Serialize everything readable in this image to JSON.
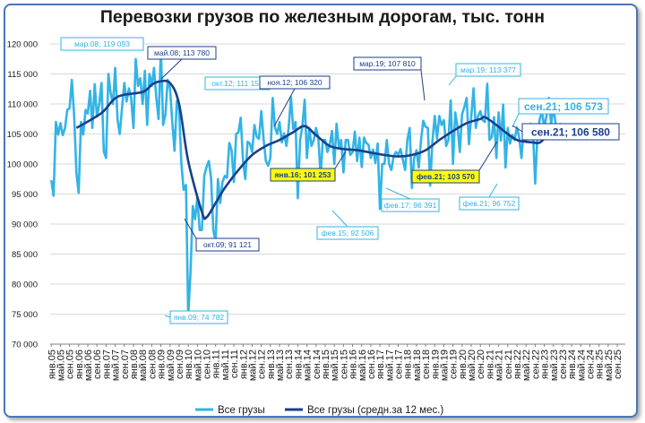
{
  "chart_data": {
    "type": "line",
    "title": "Перевозки грузов по железным дорогам, тыс. тонн",
    "ylim": [
      70000,
      120000
    ],
    "yticks": [
      70000,
      75000,
      80000,
      85000,
      90000,
      95000,
      100000,
      105000,
      110000,
      115000,
      120000
    ],
    "ytick_labels": [
      "70 000",
      "75 000",
      "80 000",
      "85 000",
      "90 000",
      "95 000",
      "100 000",
      "105 000",
      "110 000",
      "115 000",
      "120 000"
    ],
    "xtick_labels": [
      "янв.05",
      "май.05",
      "сен.05",
      "янв.06",
      "май.06",
      "сен.06",
      "янв.07",
      "май.07",
      "сен.07",
      "янв.08",
      "май.08",
      "сен.08",
      "янв.09",
      "май.09",
      "сен.09",
      "янв.10",
      "май.10",
      "сен.10",
      "янв.11",
      "май.11",
      "сен.11",
      "янв.12",
      "май.12",
      "сен.12",
      "янв.13",
      "май.13",
      "сен.13",
      "янв.14",
      "май.14",
      "сен.14",
      "янв.15",
      "май.15",
      "сен.15",
      "янв.16",
      "май.16",
      "сен.16",
      "янв.17",
      "май.17",
      "сен.17",
      "янв.18",
      "май.18",
      "сен.18",
      "янв.19",
      "май.19",
      "сен.19",
      "янв.20",
      "май.20",
      "сен.20",
      "янв.21",
      "май.21",
      "сен.21",
      "янв.22",
      "май.22",
      "сен.22",
      "янв.23",
      "май.23",
      "сен.23",
      "янв.24",
      "май.24",
      "сен.24",
      "янв.25",
      "май.25",
      "сен.25"
    ],
    "grid": "horizontal",
    "legend_position": "bottom",
    "series": [
      {
        "name": "Все грузы",
        "color": "#33b3e6",
        "start": "янв.05",
        "values": [
          97300,
          94700,
          107000,
          104900,
          106800,
          104800,
          106000,
          109000,
          109300,
          114000,
          108000,
          98500,
          95200,
          107000,
          104900,
          109000,
          108400,
          112200,
          106000,
          113300,
          107900,
          110000,
          113500,
          102000,
          101000,
          115000,
          111800,
          110000,
          116000,
          107400,
          105000,
          109500,
          113500,
          110400,
          112600,
          111000,
          106000,
          117500,
          113000,
          114300,
          110000,
          115500,
          106500,
          115000,
          113000,
          116000,
          111000,
          107500,
          119093,
          106500,
          108300,
          114000,
          112600,
          107000,
          102200,
          110500,
          109000,
          100000,
          95700,
          96500,
          74782,
          82000,
          93000,
          90800,
          94500,
          89000,
          89000,
          98000,
          99500,
          100500,
          97700,
          88900,
          87200,
          97500,
          93500,
          97000,
          98000,
          97700,
          103500,
          102300,
          97000,
          105000,
          105300,
          107700,
          100500,
          97500,
          103700,
          103400,
          102000,
          106500,
          104500,
          104200,
          108800,
          104200,
          100500,
          99700,
          101000,
          111000,
          106100,
          105000,
          107000,
          103600,
          105100,
          103000,
          106000,
          111151,
          105800,
          107000,
          94300,
          104000,
          106320,
          110700,
          101000,
          106000,
          103000,
          104000,
          106000,
          104500,
          98000,
          104000,
          104000,
          102000,
          103200,
          105500,
          100000,
          106700,
          102800,
          104000,
          98600,
          104000,
          104000,
          101500,
          102000,
          105400,
          100500,
          104400,
          99500,
          104400,
          103500,
          103200,
          101000,
          102400,
          100200,
          103400,
          92506,
          100000,
          100000,
          104000,
          100000,
          99000,
          101253,
          102000,
          101500,
          102500,
          100800,
          99000,
          104000,
          106000,
          96000,
          101000,
          102300,
          99400,
          104000,
          107200,
          106200,
          106000,
          96391,
          103800,
          108000,
          104200,
          108000,
          106500,
          107300,
          103000,
          104000,
          110600,
          100000,
          108600,
          106100,
          102000,
          108300,
          109500,
          111000,
          103300,
          107810,
          112600,
          106000,
          108000,
          108800,
          107300,
          107000,
          113377,
          104000,
          104500,
          107800,
          101000,
          108600,
          103900,
          109900,
          99400,
          106000,
          103400,
          104800,
          104000,
          106100,
          104500,
          101000,
          105800,
          104000,
          106500,
          106700,
          106000,
          96752,
          104800,
          107500,
          108700,
          106100,
          108000,
          111000,
          106600,
          109600,
          106573
        ]
      },
      {
        "name": "Все грузы (средн.за 12 мес.)",
        "color": "#1a3e8c",
        "start": "янв.05",
        "nodes": [
          [
            11,
            106000
          ],
          [
            22,
            108500
          ],
          [
            29,
            111200
          ],
          [
            40,
            112000
          ],
          [
            44,
            113200
          ],
          [
            47,
            113700
          ],
          [
            52,
            113500
          ],
          [
            56,
            110000
          ],
          [
            60,
            100500
          ],
          [
            66,
            92000
          ],
          [
            68,
            91121
          ],
          [
            72,
            93500
          ],
          [
            76,
            96000
          ],
          [
            82,
            99000
          ],
          [
            88,
            101500
          ],
          [
            94,
            103000
          ],
          [
            100,
            104000
          ],
          [
            106,
            105300
          ],
          [
            111,
            106320
          ],
          [
            116,
            104800
          ],
          [
            122,
            103000
          ],
          [
            128,
            102500
          ],
          [
            134,
            102300
          ],
          [
            140,
            101900
          ],
          [
            146,
            101500
          ],
          [
            152,
            101253
          ],
          [
            158,
            101500
          ],
          [
            164,
            102300
          ],
          [
            170,
            104000
          ],
          [
            176,
            105500
          ],
          [
            182,
            106800
          ],
          [
            188,
            107500
          ],
          [
            190,
            107810
          ],
          [
            195,
            106500
          ],
          [
            200,
            105000
          ],
          [
            204,
            104000
          ],
          [
            208,
            103700
          ],
          [
            211,
            103600
          ],
          [
            214,
            103570
          ],
          [
            218,
            105000
          ],
          [
            222,
            106500
          ],
          [
            224,
            106580
          ]
        ]
      }
    ],
    "annotations": [
      {
        "text": "мар.08; 119 093",
        "style": "light"
      },
      {
        "text": "май.08;  113 780",
        "style": "dark"
      },
      {
        "text": "окт.12; 111 151",
        "style": "light"
      },
      {
        "text": "ноя.12;  106 320",
        "style": "dark"
      },
      {
        "text": "мар.19;  107 810",
        "style": "dark"
      },
      {
        "text": "мар.19; 113 377",
        "style": "light"
      },
      {
        "text": "сен.21; 106 573",
        "style": "light-large"
      },
      {
        "text": "сен.21;   106 580",
        "style": "dark-large"
      },
      {
        "text": "янв.16;  101 253",
        "style": "yellow"
      },
      {
        "text": "фев.21;  103 570",
        "style": "yellow"
      },
      {
        "text": "янв.09; 74 782",
        "style": "light"
      },
      {
        "text": "окт.09;  91 121",
        "style": "dark"
      },
      {
        "text": "фев.15; 92 506",
        "style": "light"
      },
      {
        "text": "фев.17; 96 391",
        "style": "light"
      },
      {
        "text": "фев.21; 96 752",
        "style": "light"
      }
    ]
  }
}
